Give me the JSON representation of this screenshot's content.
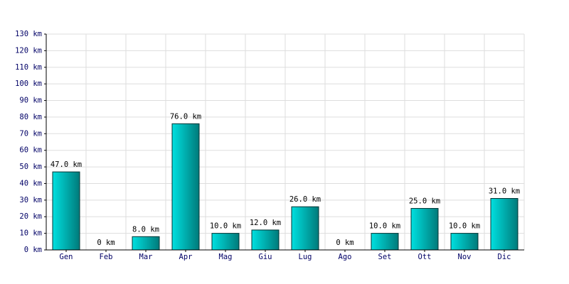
{
  "chart_data": {
    "type": "bar",
    "categories": [
      "Gen",
      "Feb",
      "Mar",
      "Apr",
      "Mag",
      "Giu",
      "Lug",
      "Ago",
      "Set",
      "Ott",
      "Nov",
      "Dic"
    ],
    "values": [
      47,
      0,
      8,
      76,
      10,
      12,
      26,
      0,
      10,
      25,
      10,
      31
    ],
    "value_labels": [
      "47.0 km",
      "0 km",
      "8.0 km",
      "76.0 km",
      "10.0 km",
      "12.0 km",
      "26.0 km",
      "0 km",
      "10.0 km",
      "25.0 km",
      "10.0 km",
      "31.0 km"
    ],
    "color": "#00e0e0",
    "ylim": [
      0,
      130
    ],
    "yticks": [
      {
        "value": 0,
        "label": "0 km"
      },
      {
        "value": 10,
        "label": "10 km"
      },
      {
        "value": 20,
        "label": "20 km"
      },
      {
        "value": 30,
        "label": "30 km"
      },
      {
        "value": 40,
        "label": "40 km"
      },
      {
        "value": 50,
        "label": "50 km"
      },
      {
        "value": 60,
        "label": "60 km"
      },
      {
        "value": 70,
        "label": "70 km"
      },
      {
        "value": 80,
        "label": "80 km"
      },
      {
        "value": 90,
        "label": "90 km"
      },
      {
        "value": 100,
        "label": "100 km"
      },
      {
        "value": 110,
        "label": "110 km"
      },
      {
        "value": 120,
        "label": "120 km"
      },
      {
        "value": 130,
        "label": "130 km"
      }
    ],
    "grid": true
  }
}
